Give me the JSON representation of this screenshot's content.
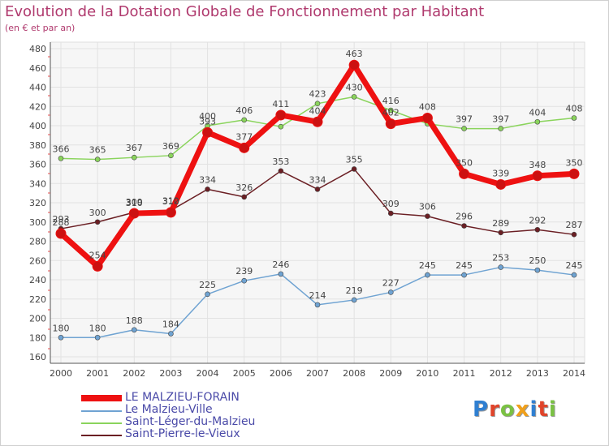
{
  "title": "Evolution de la Dotation Globale de Fonctionnement par Habitant",
  "subtitle": "(en € et par an)",
  "logo_text": "Proxiti",
  "chart_data": {
    "type": "line",
    "title": "Evolution de la Dotation Globale de Fonctionnement par Habitant",
    "subtitle": "(en € et par an)",
    "xlabel": "",
    "ylabel": "",
    "x": [
      "2000",
      "2001",
      "2002",
      "2003",
      "2004",
      "2005",
      "2006",
      "2007",
      "2008",
      "2009",
      "2010",
      "2011",
      "2012",
      "2013",
      "2014"
    ],
    "ylim": [
      160,
      480
    ],
    "yticks": [
      160,
      180,
      200,
      220,
      240,
      260,
      280,
      300,
      320,
      340,
      360,
      380,
      400,
      420,
      440,
      460,
      480
    ],
    "grid": true,
    "legend_position": "bottom-left",
    "series": [
      {
        "name": "LE MALZIEU-FORAIN",
        "color": "#ee1111",
        "values": [
          288,
          254,
          309,
          310,
          393,
          377,
          411,
          404,
          463,
          402,
          408,
          350,
          339,
          348,
          350
        ]
      },
      {
        "name": "Le Malzieu-Ville",
        "color": "#6fa3d2",
        "values": [
          180,
          180,
          188,
          184,
          225,
          239,
          246,
          214,
          219,
          227,
          245,
          245,
          253,
          250,
          245
        ]
      },
      {
        "name": "Saint-Léger-du-Malzieu",
        "color": "#8ad45c",
        "values": [
          366,
          365,
          367,
          369,
          400,
          406,
          399,
          423,
          430,
          416,
          402,
          397,
          397,
          404,
          408
        ]
      },
      {
        "name": "Saint-Pierre-le-Vieux",
        "color": "#6b1f24",
        "values": [
          293,
          300,
          310,
          312,
          334,
          326,
          353,
          334,
          355,
          309,
          306,
          296,
          289,
          292,
          287
        ]
      }
    ],
    "value_labels": [
      [
        "288",
        "254",
        "309",
        "310",
        "393",
        "377",
        "411",
        "404",
        "463",
        "402",
        "408",
        "350",
        "339",
        "348",
        "350"
      ],
      [
        "180",
        "180",
        "188",
        "184",
        "225",
        "239",
        "246",
        "214",
        "219",
        "227",
        "245",
        "245",
        "253",
        "250",
        "245"
      ],
      [
        "366",
        "365",
        "367",
        "369",
        "400",
        "406",
        "",
        "423",
        "430",
        "416",
        "",
        "397",
        "397",
        "404",
        "408"
      ],
      [
        "293",
        "300",
        "310",
        "312",
        "334",
        "326",
        "353",
        "334",
        "355",
        "309",
        "306",
        "296",
        "289",
        "292",
        "287"
      ]
    ]
  }
}
